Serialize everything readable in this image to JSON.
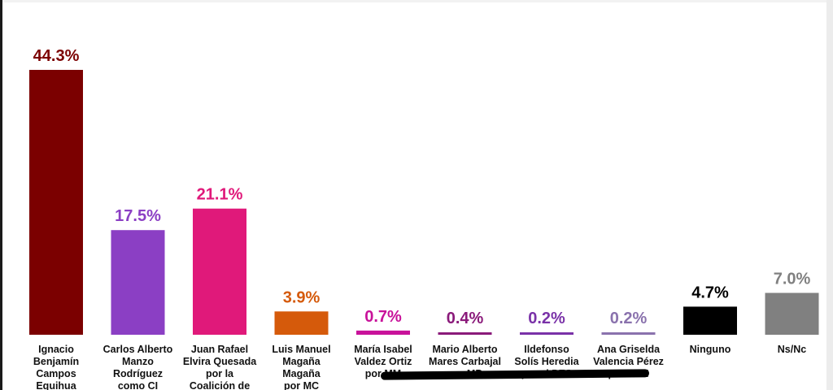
{
  "chart_data": {
    "type": "bar",
    "categories": [
      [
        "Ignacio",
        "Benjamín",
        "Campos",
        "Equihua"
      ],
      [
        "Carlos Alberto",
        "Manzo",
        "Rodríguez",
        "como CI"
      ],
      [
        "Juan Rafael",
        "Elvira Quesada",
        "por la",
        "Coalición de"
      ],
      [
        "Luis Manuel",
        "Magaña",
        "Magaña",
        "por MC"
      ],
      [
        "María Isabel",
        "Valdez Ortiz",
        "por MM"
      ],
      [
        "Mario Alberto",
        "Mares Carbajal",
        "por MP"
      ],
      [
        "Ildefonso",
        "Solís Heredia",
        "por el PES"
      ],
      [
        "Ana Griselda",
        "Valencia Pérez",
        "por TPM"
      ],
      [
        "Ninguno"
      ],
      [
        "Ns/Nc"
      ]
    ],
    "values": [
      44.3,
      17.5,
      21.1,
      3.9,
      0.7,
      0.4,
      0.2,
      0.2,
      4.7,
      7.0
    ],
    "value_labels": [
      "44.3%",
      "17.5%",
      "21.1%",
      "3.9%",
      "0.7%",
      "0.4%",
      "0.2%",
      "0.2%",
      "4.7%",
      "7.0%"
    ],
    "colors": [
      "#7b0000",
      "#8b3fc4",
      "#e0197a",
      "#d55a0b",
      "#c8129a",
      "#8a1a7a",
      "#7a32a8",
      "#8a72ad",
      "#000000",
      "#808080"
    ],
    "ylim": [
      0,
      44.3
    ],
    "grid": false,
    "legend": "none"
  }
}
